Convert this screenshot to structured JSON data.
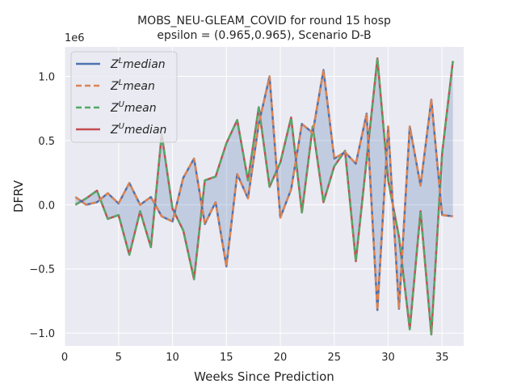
{
  "chart_data": {
    "type": "line",
    "title": "MOBS_NEU-GLEAM_COVID for round 15 hosp",
    "subtitle": "epsilon = (0.965,0.965), Scenario D-B",
    "xlabel": "Weeks Since Prediction",
    "ylabel": "DFRV",
    "y_multiplier_label": "1e6",
    "xlim": [
      0,
      37
    ],
    "ylim": [
      -1.1,
      1.23
    ],
    "x_ticks": [
      0,
      5,
      10,
      15,
      20,
      25,
      30,
      35
    ],
    "y_ticks": [
      -1.0,
      -0.5,
      0.0,
      0.5,
      1.0
    ],
    "y_tick_labels": [
      "−1.0",
      "−0.5",
      "0.0",
      "0.5",
      "1.0"
    ],
    "grid": true,
    "legend_position": "top-left",
    "x": [
      1,
      2,
      3,
      4,
      5,
      6,
      7,
      8,
      9,
      10,
      11,
      12,
      13,
      14,
      15,
      16,
      17,
      18,
      19,
      20,
      21,
      22,
      23,
      24,
      25,
      26,
      27,
      28,
      29,
      30,
      31,
      32,
      33,
      34,
      35,
      36
    ],
    "series": [
      {
        "name": "Z^L median",
        "color": "#4c72b0",
        "style": "solid",
        "values": [
          0.06,
          0.0,
          0.02,
          0.09,
          0.01,
          0.17,
          0.0,
          0.06,
          -0.09,
          -0.13,
          0.21,
          0.36,
          -0.15,
          0.02,
          -0.48,
          0.24,
          0.05,
          0.63,
          1.0,
          -0.1,
          0.12,
          0.63,
          0.56,
          1.05,
          0.36,
          0.41,
          0.32,
          0.71,
          -0.82,
          0.61,
          -0.81,
          0.61,
          0.15,
          0.82,
          -0.08,
          -0.09
        ]
      },
      {
        "name": "Z^L mean",
        "color": "#dd8452",
        "style": "dashed",
        "values": [
          0.06,
          0.0,
          0.02,
          0.09,
          0.01,
          0.17,
          0.0,
          0.06,
          -0.09,
          -0.13,
          0.21,
          0.36,
          -0.15,
          0.02,
          -0.48,
          0.24,
          0.05,
          0.63,
          1.0,
          -0.1,
          0.12,
          0.63,
          0.56,
          1.05,
          0.36,
          0.41,
          0.32,
          0.71,
          -0.82,
          0.61,
          -0.81,
          0.61,
          0.15,
          0.82,
          -0.08,
          -0.09
        ]
      },
      {
        "name": "Z^U mean",
        "color": "#55a868",
        "style": "dashed",
        "values": [
          0.0,
          0.05,
          0.11,
          -0.11,
          -0.08,
          -0.39,
          -0.05,
          -0.33,
          0.55,
          -0.03,
          -0.2,
          -0.58,
          0.19,
          0.22,
          0.48,
          0.66,
          0.19,
          0.76,
          0.14,
          0.33,
          0.68,
          -0.06,
          0.61,
          0.02,
          0.3,
          0.42,
          -0.44,
          0.35,
          1.14,
          0.19,
          -0.25,
          -0.97,
          -0.05,
          -1.01,
          0.4,
          1.12
        ]
      },
      {
        "name": "Z^U median",
        "color": "#c44e52",
        "style": "solid",
        "values": [
          0.0,
          0.05,
          0.11,
          -0.11,
          -0.08,
          -0.39,
          -0.05,
          -0.33,
          0.55,
          -0.03,
          -0.2,
          -0.58,
          0.19,
          0.22,
          0.48,
          0.66,
          0.19,
          0.76,
          0.14,
          0.33,
          0.68,
          -0.06,
          0.61,
          0.02,
          0.3,
          0.42,
          -0.44,
          0.35,
          1.14,
          0.19,
          -0.25,
          -0.97,
          -0.05,
          -1.01,
          0.4,
          1.12
        ]
      }
    ],
    "fill_between": {
      "lower": "Z^L median",
      "upper": "Z^U median",
      "color": "#4c72b0",
      "opacity": 0.25
    }
  }
}
